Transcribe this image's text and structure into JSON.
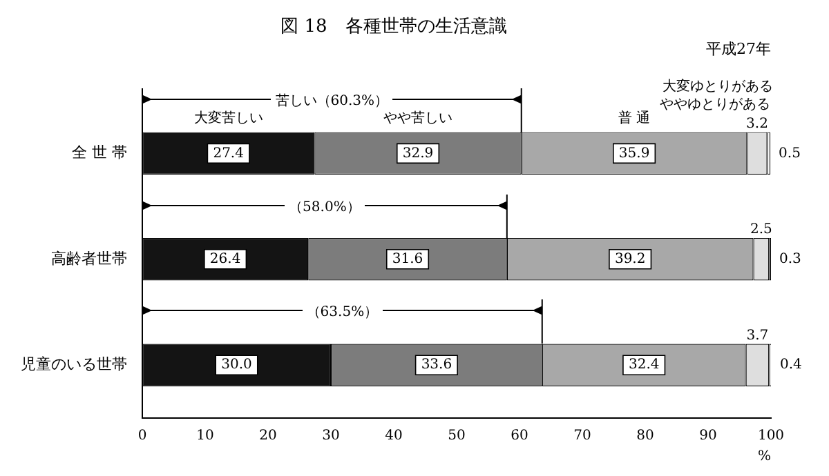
{
  "chart_data": {
    "type": "bar",
    "orientation": "horizontal",
    "stacked": true,
    "title": "図 18　各種世帯の生活意識",
    "subtitle": "平成27年",
    "xlabel": "%",
    "categories": [
      "全 世 帯",
      "高齢者世帯",
      "児童のいる世帯"
    ],
    "series": [
      {
        "name": "大変苦しい",
        "color": "#141414",
        "values": [
          27.4,
          26.4,
          30.0
        ],
        "value_labels": [
          "27.4",
          "26.4",
          "30.0"
        ]
      },
      {
        "name": "やや苦しい",
        "color": "#7c7c7c",
        "values": [
          32.9,
          31.6,
          33.6
        ],
        "value_labels": [
          "32.9",
          "31.6",
          "33.6"
        ]
      },
      {
        "name": "普 通",
        "color": "#a8a8a8",
        "values": [
          35.9,
          39.2,
          32.4
        ],
        "value_labels": [
          "35.9",
          "39.2",
          "32.4"
        ]
      },
      {
        "name": "ややゆとりがある",
        "color": "#dedede",
        "values": [
          3.2,
          2.5,
          3.7
        ],
        "value_labels": [
          "3.2",
          "2.5",
          "3.7"
        ]
      },
      {
        "name": "大変ゆとりがある",
        "color": "#ffffff",
        "values": [
          0.5,
          0.3,
          0.4
        ],
        "value_labels": [
          "0.5",
          "0.3",
          "0.4"
        ]
      }
    ],
    "annotations": [
      "苦しい（60.3%）",
      "（58.0%）",
      "（63.5%）"
    ],
    "xlim": [
      0,
      100
    ],
    "xticks": [
      0,
      10,
      20,
      30,
      40,
      50,
      60,
      70,
      80,
      90,
      100
    ],
    "grid": false
  }
}
